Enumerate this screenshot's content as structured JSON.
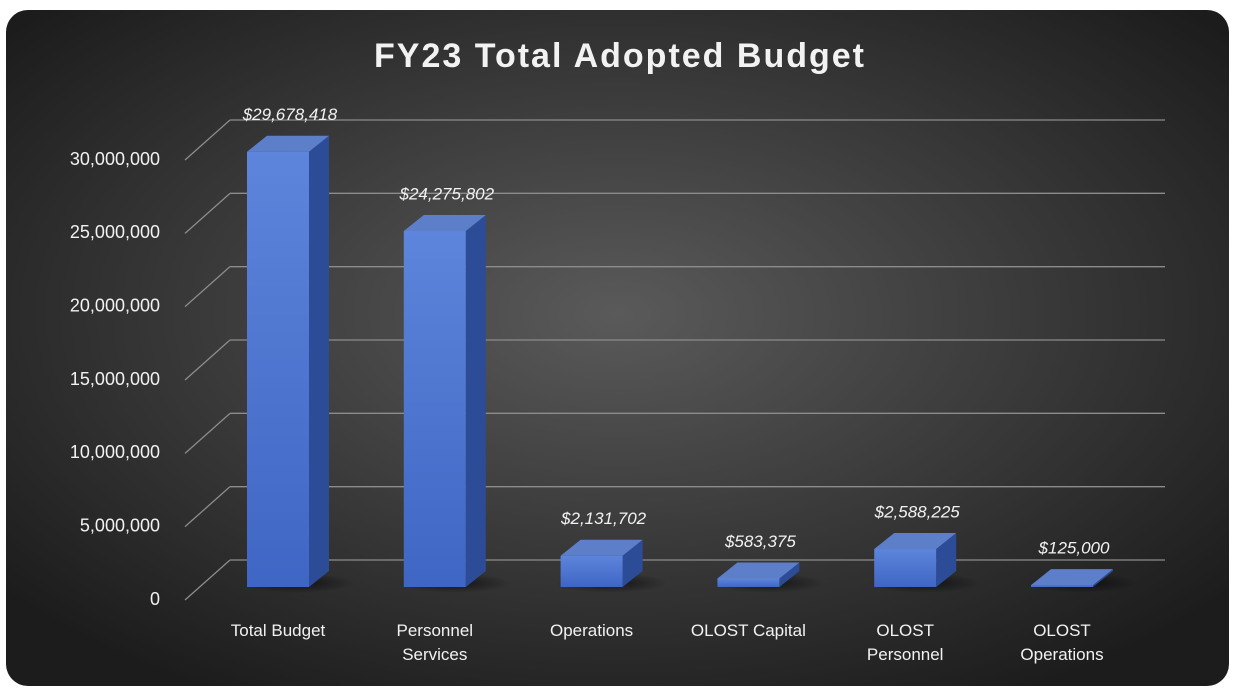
{
  "chart_data": {
    "type": "bar",
    "title": "FY23 Total Adopted Budget",
    "categories": [
      "Total Budget",
      "Personnel Services",
      "Operations",
      "OLOST Capital",
      "OLOST Personnel",
      "OLOST Operations"
    ],
    "values": [
      29678418,
      24275802,
      2131702,
      583375,
      2588225,
      125000
    ],
    "value_labels": [
      "$29,678,418",
      "$24,275,802",
      "$2,131,702",
      "$583,375",
      "$2,588,225",
      "$125,000"
    ],
    "color": "#4a74d2",
    "ylim": [
      0,
      30000000
    ],
    "yticks": [
      0,
      {
        "value": 5000000,
        "label": "5,000,000"
      },
      {
        "value": 10000000,
        "label": "10,000,000"
      },
      {
        "value": 15000000,
        "label": "15,000,000"
      },
      {
        "value": 20000000,
        "label": "20,000,000"
      },
      {
        "value": 25000000,
        "label": "25,000,000"
      },
      {
        "value": 30000000,
        "label": "30,000,000"
      }
    ],
    "grid": true
  }
}
